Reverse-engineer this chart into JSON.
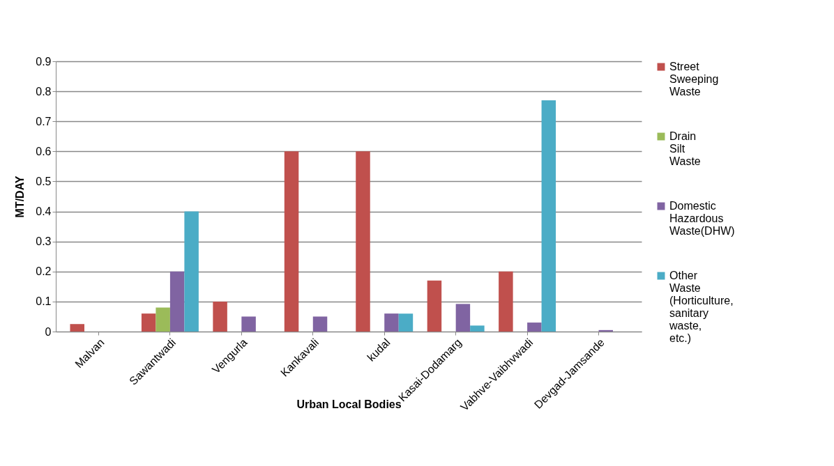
{
  "chart_data": {
    "type": "bar",
    "xlabel": "Urban Local Bodies",
    "ylabel": "MT/DAY",
    "categories": [
      "Malvan",
      "Sawantwadi",
      "Vengurla",
      "Kankavali",
      "kudal",
      "Kasai-Dodamarg",
      "Vabhve-Vaibhvwadi",
      "Devgad-Jamsande"
    ],
    "series": [
      {
        "name": " Street Sweeping Waste",
        "color": "#c0504d",
        "values": [
          0.025,
          0.06,
          0.1,
          0.6,
          0.6,
          0.17,
          0.2,
          null
        ]
      },
      {
        "name": " Drain Silt Waste",
        "color": "#9bbb59",
        "values": [
          null,
          0.08,
          null,
          null,
          null,
          null,
          null,
          null
        ]
      },
      {
        "name": "Domestic Hazardous Waste(DHW)",
        "color": "#8064a2",
        "values": [
          null,
          0.2,
          0.05,
          0.05,
          0.06,
          0.092,
          0.03,
          0.005
        ]
      },
      {
        "name": "Other Waste (Horticulture, sanitary waste, etc.)",
        "color": "#4bacc6",
        "values": [
          null,
          0.4,
          null,
          null,
          0.06,
          0.02,
          0.77,
          null
        ]
      }
    ],
    "ylim": [
      0,
      0.9
    ],
    "yticks": [
      0,
      0.1,
      0.2,
      0.3,
      0.4,
      0.5,
      0.6,
      0.7,
      0.8,
      0.9
    ],
    "grid": "y",
    "legend": "right"
  }
}
